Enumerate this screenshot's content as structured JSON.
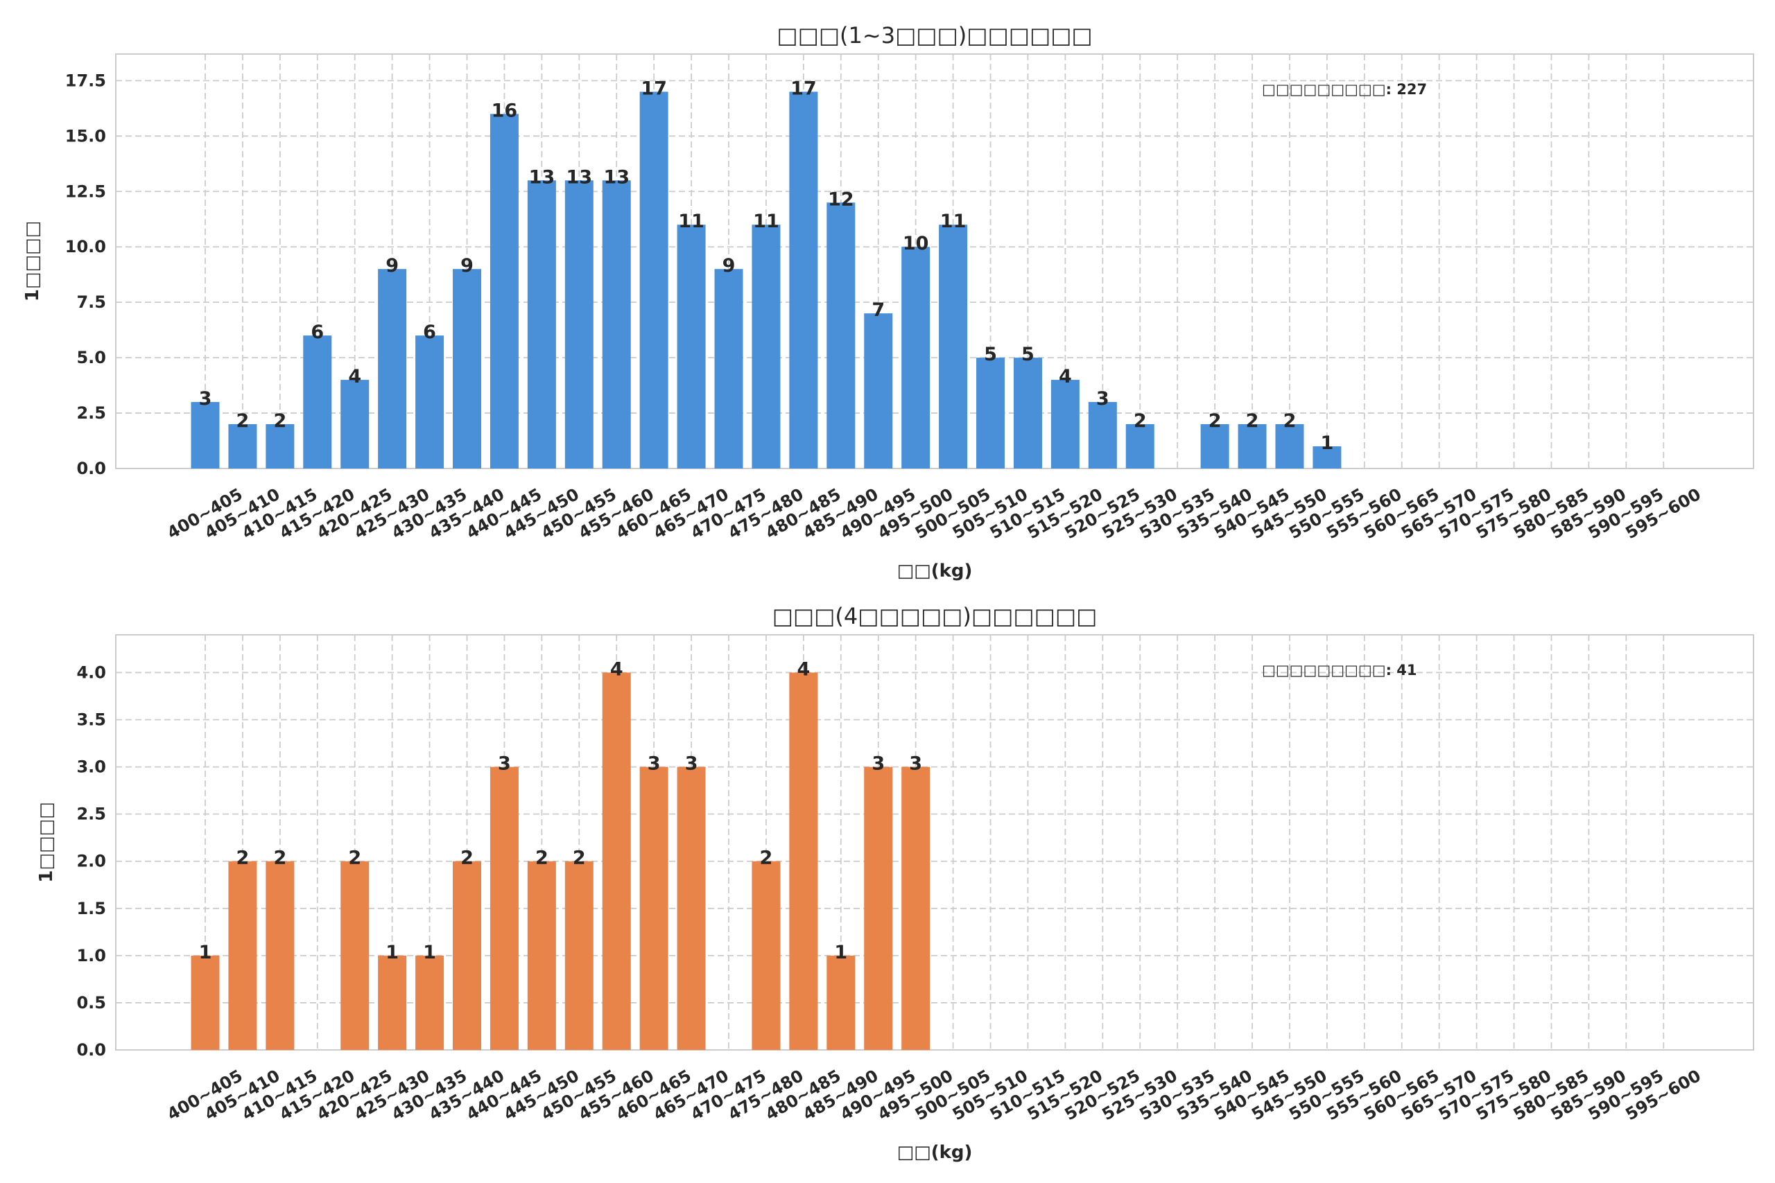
{
  "chart_data": [
    {
      "type": "bar",
      "title": "□□□(1~3□□□)□□□□□□",
      "xlabel": "□□(kg)",
      "ylabel": "1□□□□",
      "annotation": "□□□□□□□□□: 227",
      "color": "#4a90d9",
      "ylim": [
        0,
        18.7
      ],
      "yticks": [
        0,
        2.5,
        5,
        7.5,
        10,
        12.5,
        15,
        17.5
      ],
      "ytick_labels": [
        "0.0",
        "2.5",
        "5.0",
        "7.5",
        "10.0",
        "12.5",
        "15.0",
        "17.5"
      ],
      "grid": true,
      "categories": [
        "400~405",
        "405~410",
        "410~415",
        "415~420",
        "420~425",
        "425~430",
        "430~435",
        "435~440",
        "440~445",
        "445~450",
        "450~455",
        "455~460",
        "460~465",
        "465~470",
        "470~475",
        "475~480",
        "480~485",
        "485~490",
        "490~495",
        "495~500",
        "500~505",
        "505~510",
        "510~515",
        "515~520",
        "520~525",
        "525~530",
        "530~535",
        "535~540",
        "540~545",
        "545~550",
        "550~555",
        "555~560",
        "560~565",
        "565~570",
        "570~575",
        "575~580",
        "580~585",
        "585~590",
        "590~595",
        "595~600"
      ],
      "values": [
        3,
        2,
        2,
        6,
        4,
        9,
        6,
        9,
        16,
        13,
        13,
        13,
        17,
        11,
        9,
        11,
        17,
        12,
        7,
        10,
        11,
        5,
        5,
        4,
        3,
        2,
        0,
        2,
        2,
        2,
        1,
        0,
        0,
        0,
        0,
        0,
        0,
        0,
        0,
        0
      ]
    },
    {
      "type": "bar",
      "title": "□□□(4□□□□□)□□□□□□",
      "xlabel": "□□(kg)",
      "ylabel": "1□□□□",
      "annotation": "□□□□□□□□□: 41",
      "color": "#e8834a",
      "ylim": [
        0,
        4.4
      ],
      "yticks": [
        0,
        0.5,
        1,
        1.5,
        2,
        2.5,
        3,
        3.5,
        4
      ],
      "ytick_labels": [
        "0.0",
        "0.5",
        "1.0",
        "1.5",
        "2.0",
        "2.5",
        "3.0",
        "3.5",
        "4.0"
      ],
      "grid": true,
      "categories": [
        "400~405",
        "405~410",
        "410~415",
        "415~420",
        "420~425",
        "425~430",
        "430~435",
        "435~440",
        "440~445",
        "445~450",
        "450~455",
        "455~460",
        "460~465",
        "465~470",
        "470~475",
        "475~480",
        "480~485",
        "485~490",
        "490~495",
        "495~500",
        "500~505",
        "505~510",
        "510~515",
        "515~520",
        "520~525",
        "525~530",
        "530~535",
        "535~540",
        "540~545",
        "545~550",
        "550~555",
        "555~560",
        "560~565",
        "565~570",
        "570~575",
        "575~580",
        "580~585",
        "585~590",
        "590~595",
        "595~600"
      ],
      "values": [
        1,
        2,
        2,
        0,
        2,
        1,
        1,
        2,
        3,
        2,
        2,
        4,
        3,
        3,
        0,
        2,
        4,
        1,
        3,
        3,
        0,
        0,
        0,
        0,
        0,
        0,
        0,
        0,
        0,
        0,
        0,
        0,
        0,
        0,
        0,
        0,
        0,
        0,
        0,
        0
      ]
    }
  ]
}
